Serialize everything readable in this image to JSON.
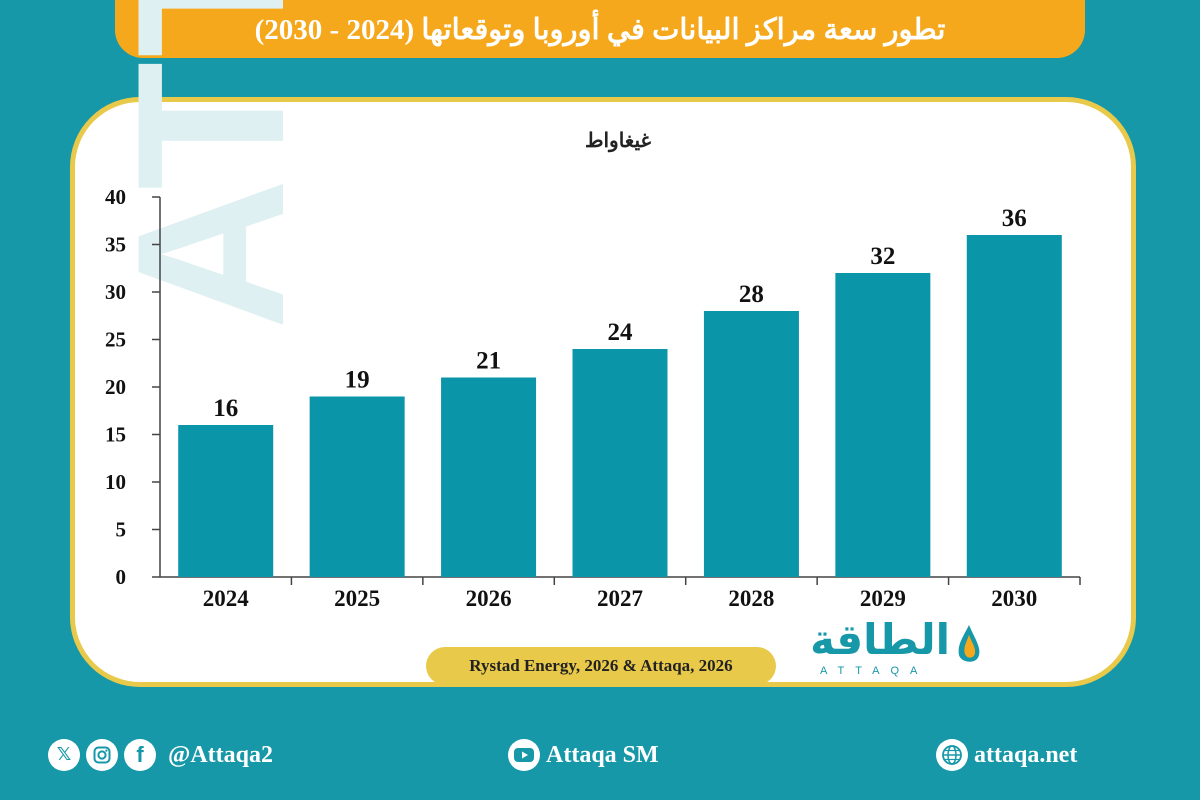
{
  "header": {
    "title": "تطور سعة مراكز البيانات في أوروبا وتوقعاتها (2024 - 2030)"
  },
  "chart_data": {
    "type": "bar",
    "title": "تطور سعة مراكز البيانات في أوروبا وتوقعاتها (2024 - 2030)",
    "ylabel": "غيغاواط",
    "xlabel": "",
    "categories": [
      "2024",
      "2025",
      "2026",
      "2027",
      "2028",
      "2029",
      "2030"
    ],
    "values": [
      16,
      19,
      21,
      24,
      28,
      32,
      36
    ],
    "ylim": [
      0,
      40
    ],
    "yticks": [
      0,
      5,
      10,
      15,
      20,
      25,
      30,
      35,
      40
    ],
    "grid": false,
    "bar_color": "#0a95a8",
    "data_labels": true
  },
  "source": "Rystad Energy, 2026 & Attaqa, 2026",
  "brand": {
    "arabic": "الطاقة",
    "latin": "ATTAQA",
    "watermark": "ATTAQA"
  },
  "footer": {
    "social_handle": "@Attaqa2",
    "youtube": "Attaqa SM",
    "website": "attaqa.net",
    "social_icons": [
      "x-icon",
      "instagram-icon",
      "facebook-icon"
    ]
  },
  "colors": {
    "background": "#1698a8",
    "banner": "#f6a81c",
    "card_border": "#e9c94a",
    "bar": "#0a95a8"
  }
}
